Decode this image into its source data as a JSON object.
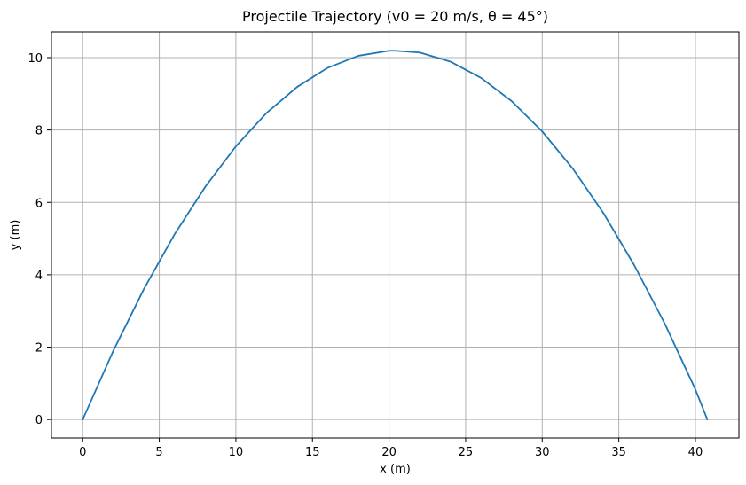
{
  "chart_data": {
    "type": "line",
    "title": "Projectile Trajectory (v0 = 20 m/s, θ = 45°)",
    "xlabel": "x (m)",
    "ylabel": "y (m)",
    "xlim": [
      -2.04,
      42.84
    ],
    "ylim": [
      -0.51,
      10.71
    ],
    "xticks": [
      0,
      5,
      10,
      15,
      20,
      25,
      30,
      35,
      40
    ],
    "yticks": [
      0,
      2,
      4,
      6,
      8,
      10
    ],
    "grid": true,
    "line_color": "#1f77b4",
    "grid_color": "#b0b0b0",
    "series": [
      {
        "name": "",
        "x": [
          0,
          2,
          4,
          6,
          8,
          10,
          12,
          14,
          16,
          18,
          20,
          20.39,
          22,
          24,
          26,
          28,
          30,
          32,
          34,
          36,
          38,
          40,
          40.78
        ],
        "y": [
          0,
          1.9,
          3.61,
          5.12,
          6.43,
          7.55,
          8.47,
          9.19,
          9.72,
          10.05,
          10.19,
          10.19,
          10.14,
          9.89,
          9.44,
          8.8,
          7.96,
          6.93,
          5.7,
          4.27,
          2.65,
          0.83,
          0
        ]
      }
    ]
  }
}
